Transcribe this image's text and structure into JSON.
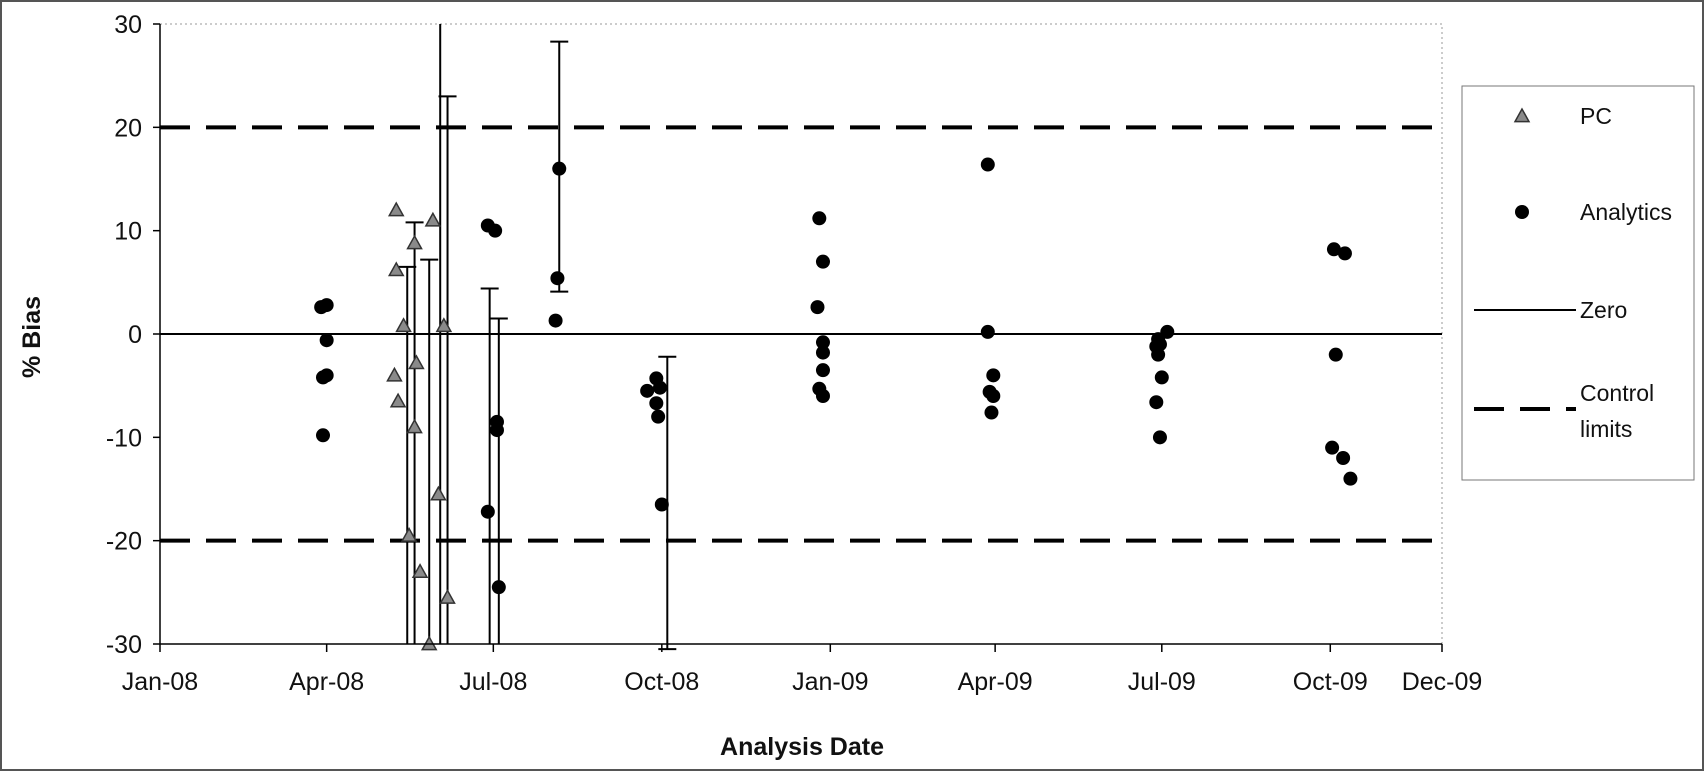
{
  "chart_data": {
    "type": "scatter",
    "title": "",
    "xlabel": "Analysis Date",
    "ylabel": "% Bias",
    "ylim": [
      -30,
      30
    ],
    "y_ticks": [
      -30,
      -20,
      -10,
      0,
      10,
      20,
      30
    ],
    "y_tick_labels": [
      "-30",
      "-20",
      "-10",
      "0",
      "10",
      "20",
      "30"
    ],
    "xlim": [
      "2008-01-01",
      "2009-12-01"
    ],
    "x_ticks": [
      "2008-01-01",
      "2008-04-01",
      "2008-07-01",
      "2008-10-01",
      "2009-01-01",
      "2009-04-01",
      "2009-07-01",
      "2009-10-01",
      "2009-12-01"
    ],
    "x_tick_labels": [
      "Jan-08",
      "Apr-08",
      "Jul-08",
      "Oct-08",
      "Jan-09",
      "Apr-09",
      "Jul-09",
      "Oct-09",
      "Dec-09"
    ],
    "grid": false,
    "legend_position": "right",
    "series": [
      {
        "name": "PC",
        "marker": "triangle",
        "color": "#8a8a8a",
        "points": [
          {
            "x": "2008-05-09",
            "y": 12.0
          },
          {
            "x": "2008-05-09",
            "y": 6.2
          },
          {
            "x": "2008-05-08",
            "y": -4.0
          },
          {
            "x": "2008-05-10",
            "y": -6.5
          },
          {
            "x": "2008-05-13",
            "y": 0.8
          },
          {
            "x": "2008-05-16",
            "y": -19.5
          },
          {
            "x": "2008-05-19",
            "y": 8.8
          },
          {
            "x": "2008-05-20",
            "y": -2.8
          },
          {
            "x": "2008-05-19",
            "y": -9.0
          },
          {
            "x": "2008-05-22",
            "y": -23.0
          },
          {
            "x": "2008-05-27",
            "y": -30.0
          },
          {
            "x": "2008-05-29",
            "y": 11.0
          },
          {
            "x": "2008-06-01",
            "y": -15.5
          },
          {
            "x": "2008-06-04",
            "y": 0.8
          },
          {
            "x": "2008-06-06",
            "y": -25.5
          }
        ]
      },
      {
        "name": "Analytics",
        "marker": "circle",
        "color": "#000000",
        "points": [
          {
            "x": "2008-03-29",
            "y": 2.6
          },
          {
            "x": "2008-04-01",
            "y": 2.8
          },
          {
            "x": "2008-04-01",
            "y": -0.6
          },
          {
            "x": "2008-03-30",
            "y": -4.2
          },
          {
            "x": "2008-04-01",
            "y": -4.0
          },
          {
            "x": "2008-03-30",
            "y": -9.8
          },
          {
            "x": "2008-06-28",
            "y": 10.5
          },
          {
            "x": "2008-07-02",
            "y": 10.0
          },
          {
            "x": "2008-07-03",
            "y": -8.5
          },
          {
            "x": "2008-07-03",
            "y": -9.3
          },
          {
            "x": "2008-06-28",
            "y": -17.2
          },
          {
            "x": "2008-07-04",
            "y": -24.5
          },
          {
            "x": "2008-08-06",
            "y": 16.0
          },
          {
            "x": "2008-08-05",
            "y": 5.4
          },
          {
            "x": "2008-08-04",
            "y": 1.3
          },
          {
            "x": "2008-09-23",
            "y": -5.5
          },
          {
            "x": "2008-09-28",
            "y": -4.3
          },
          {
            "x": "2008-09-30",
            "y": -5.2
          },
          {
            "x": "2008-09-28",
            "y": -6.7
          },
          {
            "x": "2008-09-29",
            "y": -8.0
          },
          {
            "x": "2008-10-01",
            "y": -16.5
          },
          {
            "x": "2008-12-26",
            "y": 11.2
          },
          {
            "x": "2008-12-28",
            "y": 7.0
          },
          {
            "x": "2008-12-25",
            "y": 2.6
          },
          {
            "x": "2008-12-28",
            "y": -0.8
          },
          {
            "x": "2008-12-28",
            "y": -1.8
          },
          {
            "x": "2008-12-28",
            "y": -3.5
          },
          {
            "x": "2008-12-26",
            "y": -5.3
          },
          {
            "x": "2008-12-28",
            "y": -6.0
          },
          {
            "x": "2009-03-28",
            "y": 16.4
          },
          {
            "x": "2009-03-28",
            "y": 0.2
          },
          {
            "x": "2009-03-31",
            "y": -4.0
          },
          {
            "x": "2009-03-29",
            "y": -5.6
          },
          {
            "x": "2009-03-31",
            "y": -6.0
          },
          {
            "x": "2009-03-30",
            "y": -7.6
          },
          {
            "x": "2009-06-29",
            "y": -0.5
          },
          {
            "x": "2009-06-28",
            "y": -1.2
          },
          {
            "x": "2009-06-30",
            "y": -1.0
          },
          {
            "x": "2009-06-29",
            "y": -2.0
          },
          {
            "x": "2009-07-04",
            "y": 0.2
          },
          {
            "x": "2009-07-01",
            "y": -4.2
          },
          {
            "x": "2009-06-28",
            "y": -6.6
          },
          {
            "x": "2009-06-30",
            "y": -10.0
          },
          {
            "x": "2009-10-03",
            "y": 8.2
          },
          {
            "x": "2009-10-09",
            "y": 7.8
          },
          {
            "x": "2009-10-04",
            "y": -2.0
          },
          {
            "x": "2009-10-02",
            "y": -11.0
          },
          {
            "x": "2009-10-08",
            "y": -12.0
          },
          {
            "x": "2009-10-12",
            "y": -14.0
          }
        ]
      },
      {
        "name": "Zero",
        "line": "solid",
        "color": "#000000",
        "y": 0
      },
      {
        "name": "Control limits",
        "line": "dashed",
        "color": "#000000",
        "y": [
          20,
          -20
        ]
      }
    ],
    "error_bars": [
      {
        "x": "2008-05-15",
        "high": 6.5,
        "low": -30,
        "cap_top": true,
        "cap_bottom": false
      },
      {
        "x": "2008-05-19",
        "high": 10.8,
        "low": -30,
        "cap_top": true,
        "cap_bottom": false
      },
      {
        "x": "2008-05-27",
        "high": 7.2,
        "low": -30,
        "cap_top": true,
        "cap_bottom": false
      },
      {
        "x": "2008-06-02",
        "high": 30,
        "low": -30,
        "cap_top": false,
        "cap_bottom": false
      },
      {
        "x": "2008-06-06",
        "high": 23.0,
        "low": -30,
        "cap_top": true,
        "cap_bottom": false
      },
      {
        "x": "2008-06-29",
        "high": 4.4,
        "low": -30,
        "cap_top": true,
        "cap_bottom": false
      },
      {
        "x": "2008-07-04",
        "high": 1.5,
        "low": -30,
        "cap_top": true,
        "cap_bottom": false
      },
      {
        "x": "2008-08-06",
        "high": 28.3,
        "low": 4.1,
        "cap_top": true,
        "cap_bottom": true
      },
      {
        "x": "2008-10-04",
        "high": -2.2,
        "low": -30.5,
        "cap_top": true,
        "cap_bottom": true
      }
    ]
  },
  "legend": {
    "items": [
      {
        "label": "PC",
        "symbol": "triangle"
      },
      {
        "label": "Analytics",
        "symbol": "circle"
      },
      {
        "label": "Zero",
        "symbol": "solid-line"
      },
      {
        "label": "Control\nlimits",
        "symbol": "dashed-line"
      }
    ]
  }
}
